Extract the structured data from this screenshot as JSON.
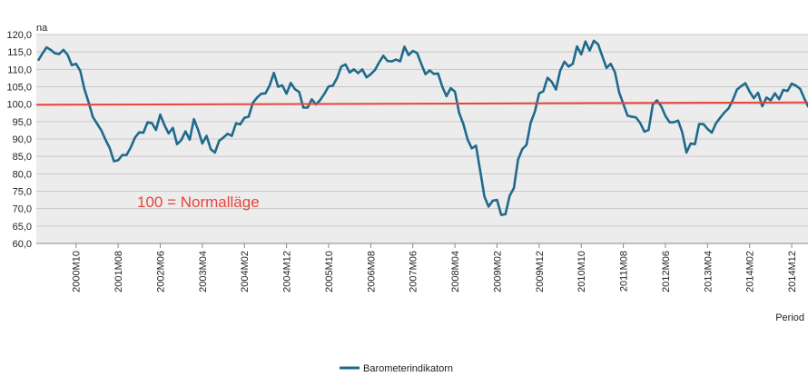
{
  "chart_data": {
    "type": "line",
    "ylabel": "na",
    "xlabel": "Period",
    "ylim": [
      60,
      120
    ],
    "yticks": [
      "60,0",
      "65,0",
      "70,0",
      "75,0",
      "80,0",
      "85,0",
      "90,0",
      "95,0",
      "100,0",
      "105,0",
      "110,0",
      "115,0",
      "120,0"
    ],
    "xtick_labels": [
      "2000M10",
      "2001M08",
      "2002M06",
      "2003M04",
      "2004M02",
      "2004M12",
      "2005M10",
      "2006M08",
      "2007M06",
      "2008M04",
      "2009M02",
      "2009M12",
      "2010M10",
      "2011M08",
      "2012M06",
      "2013M04",
      "2014M02",
      "2014M12"
    ],
    "x_start": "2000M01",
    "x_end": "2015M03",
    "grid": true,
    "legend_position": "bottom",
    "series": [
      {
        "name": "Barometerindikatorn",
        "color": "#1f6a8c",
        "values": [
          112.5,
          114.5,
          116.3,
          115.6,
          114.6,
          114.4,
          115.6,
          114.2,
          111.2,
          111.6,
          109.6,
          104.3,
          100.5,
          96.3,
          94.4,
          92.5,
          89.8,
          87.4,
          83.6,
          83.9,
          85.4,
          85.4,
          87.6,
          90.4,
          91.9,
          91.8,
          94.8,
          94.6,
          92.6,
          97.0,
          94.0,
          91.6,
          93.2,
          88.5,
          89.7,
          92.2,
          89.8,
          95.7,
          92.6,
          88.7,
          90.9,
          87.1,
          86.1,
          89.5,
          90.4,
          91.5,
          90.9,
          94.5,
          94.2,
          96.1,
          96.4,
          100.4,
          101.9,
          103.0,
          103.1,
          105.4,
          109.0,
          105.0,
          105.4,
          103.0,
          106.1,
          104.3,
          103.5,
          99.0,
          99.0,
          101.4,
          99.9,
          101.2,
          103.0,
          105.1,
          105.3,
          107.5,
          110.8,
          111.4,
          109.1,
          110.0,
          108.9,
          110.0,
          107.7,
          108.6,
          109.8,
          112.0,
          113.9,
          112.4,
          112.3,
          112.8,
          112.3,
          116.5,
          114.1,
          115.3,
          114.7,
          111.6,
          108.6,
          109.7,
          108.7,
          108.8,
          105.0,
          102.3,
          104.6,
          103.6,
          97.5,
          94.3,
          89.9,
          87.3,
          88.1,
          80.9,
          73.5,
          70.6,
          72.3,
          72.5,
          68.2,
          68.4,
          73.7,
          75.9,
          84.1,
          87.1,
          88.3,
          94.7,
          97.9,
          103.1,
          103.7,
          107.6,
          106.4,
          104.2,
          109.6,
          112.2,
          110.8,
          111.6,
          116.6,
          114.3,
          118.0,
          115.4,
          118.2,
          117.2,
          113.8,
          110.4,
          111.6,
          109.2,
          103.4,
          100.1,
          96.7,
          96.4,
          96.2,
          94.6,
          92.1,
          92.6,
          99.9,
          101.1,
          99.4,
          96.6,
          94.8,
          94.8,
          95.3,
          91.9,
          86.1,
          88.7,
          88.5,
          94.3,
          94.3,
          92.9,
          91.8,
          94.5,
          96.1,
          97.6,
          98.8,
          101.2,
          104.2,
          105.2,
          106.0,
          103.6,
          101.7,
          103.3,
          99.4,
          101.9,
          101.1,
          103.1,
          101.4,
          104.1,
          103.8,
          105.9,
          105.3,
          104.4,
          101.6,
          99.1
        ]
      },
      {
        "name": "100 = Normalläge",
        "color": "#e8453c",
        "values": [
          99.8,
          100.5
        ]
      }
    ],
    "annotations": [
      {
        "text": "100 = Normalläge",
        "color": "#e8453c",
        "x": "2001M08",
        "y": 72.5
      }
    ]
  }
}
